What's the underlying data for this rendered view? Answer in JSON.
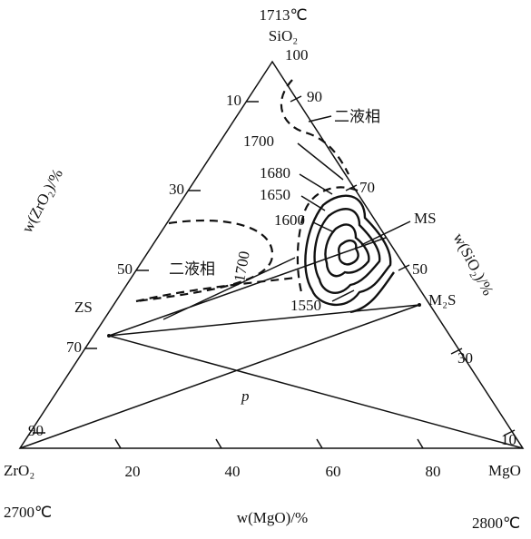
{
  "vertices": {
    "top": {
      "temperature": "1713℃",
      "formula": "SiO₂"
    },
    "left": {
      "formula": "ZrO₂",
      "temperature": "2700℃"
    },
    "right": {
      "formula": "MgO",
      "temperature": "2800℃"
    }
  },
  "axes": {
    "left": {
      "title": "w(ZrO₂)/%",
      "ticks": [
        "10",
        "30",
        "50",
        "70",
        "90"
      ]
    },
    "right": {
      "title": "w(SiO₂)/%",
      "ticks": [
        "100",
        "90",
        "70",
        "50",
        "30",
        "10"
      ]
    },
    "bottom": {
      "title": "w(MgO)/%",
      "ticks": [
        "20",
        "40",
        "60",
        "80"
      ]
    }
  },
  "points": {
    "zs": "ZS",
    "m2s": "M₂S",
    "ms": "MS",
    "p": "p"
  },
  "regions": [
    "二液相",
    "二液相"
  ],
  "isotherms": [
    "1700",
    "1680",
    "1650",
    "1600",
    "1700",
    "1550"
  ]
}
